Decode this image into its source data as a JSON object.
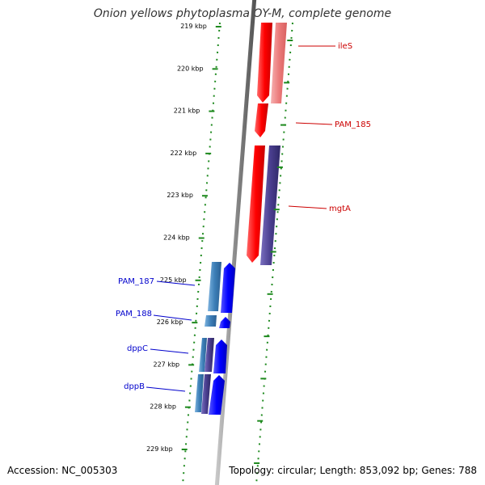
{
  "header": {
    "title": "Onion yellows phytoplasma OY-M, complete genome"
  },
  "footer": {
    "accession": "Accession: NC_005303",
    "topology": "Topology: circular; Length: 853,092 bp; Genes: 788"
  },
  "scale": {
    "tick_labels": [
      "219 kbp",
      "220 kbp",
      "221 kbp",
      "222 kbp",
      "223 kbp",
      "224 kbp",
      "225 kbp",
      "226 kbp",
      "227 kbp",
      "228 kbp",
      "229 kbp"
    ]
  },
  "genes": {
    "forward": [
      "ileS",
      "PAM_185",
      "mgtA"
    ],
    "reverse": [
      "PAM_187",
      "PAM_188",
      "dppC",
      "dppB"
    ]
  },
  "colors": {
    "backbone": "#8a8a8a",
    "dot_track": "#1f8a1f",
    "forward_gene": "#ff0000",
    "forward_gene_light": "#f08a8a",
    "forward_label": "#cc0000",
    "reverse_gene": "#0000ff",
    "reverse_gene_steel": "#3d7fb8",
    "reverse_label": "#0000cc",
    "purple_gene": "#4a3f8f"
  }
}
